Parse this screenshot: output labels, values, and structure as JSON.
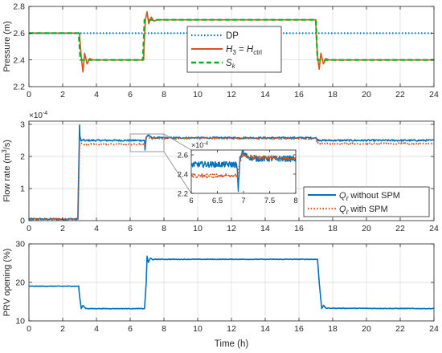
{
  "colors": {
    "blue": "#0072BD",
    "orange": "#D95319",
    "green": "#00B31A",
    "axis": "#262626",
    "grid": "#d9d9d9"
  },
  "xlabel": "Time (h)",
  "chart_data": [
    {
      "type": "line",
      "ylabel": "Pressure (m)",
      "xlim": [
        0,
        24
      ],
      "ylim": [
        2.2,
        2.8
      ],
      "xticks": [
        0,
        2,
        4,
        6,
        8,
        10,
        12,
        14,
        16,
        18,
        20,
        22,
        24
      ],
      "yticks": [
        2.2,
        2.4,
        2.6,
        2.8
      ],
      "ytick_labels": [
        "2.2",
        "2.4",
        "2.6",
        "2.8"
      ],
      "grid": true,
      "legend_position": "center",
      "legend": [
        "DP",
        "H₃ = Hₑₜᵣₗ",
        "Sₖ"
      ],
      "legend_html": [
        {
          "main": "DP",
          "sub": ""
        },
        {
          "main": "H",
          "sub": "3",
          "rest": " = ",
          "main2": "H",
          "sub2": "ctrl"
        },
        {
          "main": "S",
          "sub": "k"
        }
      ],
      "series": [
        {
          "id": "dp",
          "style": "dotted",
          "color": "#0072BD",
          "x": [
            0,
            24
          ],
          "y": [
            2.6,
            2.6
          ]
        },
        {
          "id": "h3",
          "style": "solid",
          "color": "#D95319",
          "x": [
            0,
            3.0,
            3.02,
            3.1,
            3.2,
            3.3,
            3.45,
            3.6,
            3.8,
            6.8,
            6.82,
            6.9,
            7.0,
            7.1,
            7.25,
            7.4,
            7.6,
            17.0,
            17.02,
            17.1,
            17.2,
            17.3,
            17.45,
            17.6,
            17.8,
            24
          ],
          "y": [
            2.6,
            2.6,
            2.55,
            2.42,
            2.31,
            2.45,
            2.37,
            2.41,
            2.4,
            2.4,
            2.5,
            2.7,
            2.76,
            2.67,
            2.72,
            2.69,
            2.7,
            2.7,
            2.6,
            2.43,
            2.33,
            2.45,
            2.37,
            2.41,
            2.4,
            2.4
          ]
        },
        {
          "id": "sk",
          "style": "dashed",
          "color": "#00B31A",
          "x": [
            0,
            2.95,
            3.05,
            6.75,
            6.85,
            17.0,
            17.1,
            24
          ],
          "y": [
            2.6,
            2.6,
            2.4,
            2.4,
            2.7,
            2.7,
            2.4,
            2.4
          ]
        }
      ]
    },
    {
      "type": "line",
      "ylabel": "Flow rate (m³/s)",
      "ylabel_html": {
        "main": "Flow rate (m",
        "sup": "3",
        "rest": "/s)"
      },
      "exponent_label": "×10⁻⁴",
      "exponent_html": {
        "main": "×10",
        "sup": "-4"
      },
      "xlim": [
        0,
        24
      ],
      "ylim": [
        0,
        3.1
      ],
      "xticks": [
        0,
        2,
        4,
        6,
        8,
        10,
        12,
        14,
        16,
        18,
        20,
        22,
        24
      ],
      "yticks": [
        0,
        1,
        2,
        3
      ],
      "ytick_labels": [
        "0",
        "1",
        "2",
        "3"
      ],
      "grid": true,
      "legend_position": "bottom-right",
      "legend": [
        "Qℓ without SPM",
        "Qℓ with SPM"
      ],
      "legend_html": [
        {
          "main": "Q",
          "sub": "ℓ",
          "rest": " without SPM"
        },
        {
          "main": "Q",
          "sub": "ℓ",
          "rest": " with SPM"
        }
      ],
      "series": [
        {
          "id": "q_without",
          "style": "solid",
          "color": "#0072BD",
          "x": [
            0,
            2.9,
            3.0,
            3.02,
            3.1,
            3.2,
            3.35,
            3.5,
            6.85,
            6.88,
            6.95,
            7.05,
            7.3,
            17.0,
            17.1,
            17.3,
            24
          ],
          "y": [
            0.05,
            0.05,
            2.98,
            2.62,
            2.48,
            2.52,
            2.49,
            2.5,
            2.5,
            2.2,
            2.6,
            2.66,
            2.58,
            2.58,
            2.52,
            2.5,
            2.5
          ],
          "noise": 0.025
        },
        {
          "id": "q_with",
          "style": "dotted",
          "color": "#D95319",
          "x": [
            0,
            2.9,
            3.0,
            3.1,
            3.3,
            6.85,
            6.88,
            6.95,
            7.05,
            7.3,
            17.0,
            17.1,
            17.3,
            24
          ],
          "y": [
            0.05,
            0.05,
            2.35,
            2.4,
            2.38,
            2.38,
            2.3,
            2.6,
            2.62,
            2.56,
            2.56,
            2.42,
            2.4,
            2.4
          ],
          "noise": 0.02
        }
      ],
      "inset": {
        "exponent_label": "×10⁻⁴",
        "exponent_html": {
          "main": "×10",
          "sup": "-4"
        },
        "xlim": [
          6,
          8
        ],
        "ylim": [
          2.2,
          2.65
        ],
        "xticks": [
          6,
          6.5,
          7,
          7.5,
          8
        ],
        "xtick_labels": [
          "6",
          "6.5",
          "7",
          "7.5",
          "8"
        ],
        "yticks": [
          2.2,
          2.4,
          2.6
        ],
        "ytick_labels": [
          "2.2",
          "2.4",
          "2.6"
        ],
        "series": [
          {
            "id": "inset_without",
            "style": "solid",
            "color": "#0072BD",
            "x": [
              6,
              6.86,
              6.88,
              6.9,
              6.93,
              6.97,
              7.05,
              7.2,
              8
            ],
            "y": [
              2.5,
              2.5,
              2.45,
              2.22,
              2.55,
              2.62,
              2.59,
              2.56,
              2.56
            ],
            "noise": 0.03
          },
          {
            "id": "inset_with",
            "style": "dotted",
            "color": "#D95319",
            "x": [
              6,
              6.86,
              6.88,
              6.92,
              6.97,
              7.05,
              8
            ],
            "y": [
              2.38,
              2.38,
              2.36,
              2.5,
              2.6,
              2.58,
              2.56
            ],
            "noise": 0.02
          }
        ]
      }
    },
    {
      "type": "line",
      "ylabel": "PRV opening (%)",
      "xlim": [
        0,
        24
      ],
      "ylim": [
        10,
        30
      ],
      "xticks": [
        0,
        2,
        4,
        6,
        8,
        10,
        12,
        14,
        16,
        18,
        20,
        22,
        24
      ],
      "yticks": [
        10,
        20,
        30
      ],
      "ytick_labels": [
        "10",
        "20",
        "30"
      ],
      "grid": true,
      "series": [
        {
          "id": "prv",
          "style": "solid",
          "color": "#0072BD",
          "x": [
            0,
            2.95,
            3.0,
            3.1,
            3.2,
            3.35,
            3.5,
            6.85,
            6.95,
            7.0,
            7.08,
            7.2,
            7.35,
            7.5,
            17.1,
            17.2,
            17.35,
            17.45,
            17.6,
            24
          ],
          "y": [
            19,
            19,
            16.5,
            13.2,
            14.0,
            13.3,
            13.2,
            13.2,
            20,
            26.8,
            25.2,
            26.3,
            25.9,
            26,
            26,
            20,
            13.2,
            14.0,
            13.3,
            13.2
          ],
          "noise": 0.08
        }
      ]
    }
  ]
}
